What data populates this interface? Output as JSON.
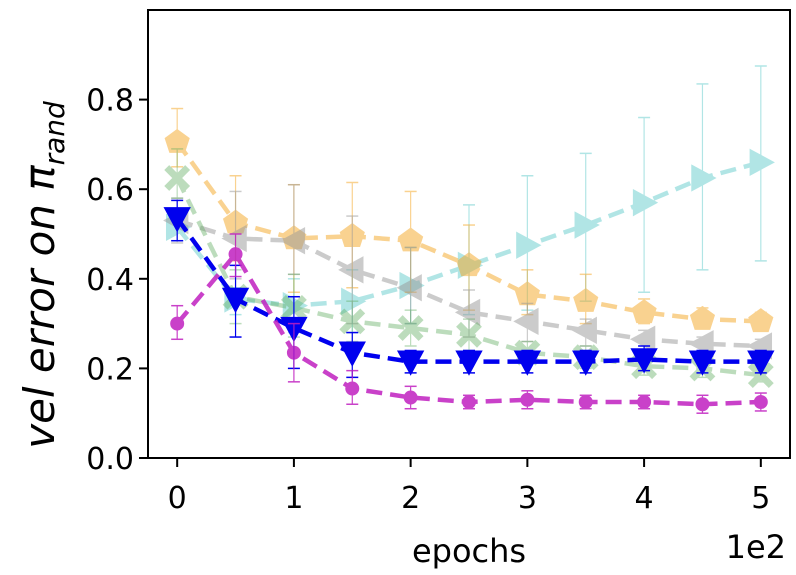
{
  "chart_data": {
    "type": "line",
    "xlabel": "epochs",
    "ylabel": "vel error on π",
    "ylabel_subscript": "rand",
    "x_offset_text": "1e2",
    "xlim": [
      -0.25,
      5.25
    ],
    "ylim": [
      0.0,
      1.0
    ],
    "x_ticks": [
      0,
      1,
      2,
      3,
      4,
      5
    ],
    "x_tick_labels": [
      "0",
      "1",
      "2",
      "3",
      "4",
      "5"
    ],
    "y_ticks": [
      0.0,
      0.2,
      0.4,
      0.6,
      0.8
    ],
    "y_tick_labels": [
      "0.0",
      "0.2",
      "0.4",
      "0.6",
      "0.8"
    ],
    "grid": false,
    "legend": "none",
    "x": [
      0,
      0.5,
      1,
      1.5,
      2,
      2.5,
      3,
      3.5,
      4,
      4.5,
      5
    ],
    "series": [
      {
        "color": "#66cdcd",
        "marker": "triangle-right",
        "opacity": 0.5,
        "values": [
          0.515,
          0.355,
          0.34,
          0.35,
          0.385,
          0.43,
          0.475,
          0.52,
          0.57,
          0.625,
          0.66
        ],
        "err_low": [
          0.485,
          0.32,
          0.28,
          0.28,
          0.3,
          0.32,
          0.33,
          0.35,
          0.37,
          0.42,
          0.44
        ],
        "err_high": [
          0.545,
          0.38,
          0.4,
          0.42,
          0.47,
          0.565,
          0.63,
          0.68,
          0.76,
          0.835,
          0.875
        ]
      },
      {
        "color": "#f5a623",
        "marker": "pentagon",
        "opacity": 0.5,
        "values": [
          0.705,
          0.525,
          0.49,
          0.495,
          0.485,
          0.43,
          0.365,
          0.35,
          0.325,
          0.31,
          0.305
        ],
        "err_low": [
          0.65,
          0.44,
          0.37,
          0.38,
          0.37,
          0.33,
          0.32,
          0.3,
          0.3,
          0.29,
          0.285
        ],
        "err_high": [
          0.78,
          0.63,
          0.61,
          0.615,
          0.595,
          0.52,
          0.42,
          0.41,
          0.355,
          0.335,
          0.325
        ]
      },
      {
        "color": "#999999",
        "marker": "triangle-left",
        "opacity": 0.5,
        "values": [
          0.53,
          0.49,
          0.485,
          0.42,
          0.38,
          0.325,
          0.305,
          0.285,
          0.265,
          0.255,
          0.25
        ],
        "err_low": [
          0.48,
          0.4,
          0.41,
          0.3,
          0.3,
          0.27,
          0.26,
          0.25,
          0.24,
          0.23,
          0.225
        ],
        "err_high": [
          0.58,
          0.595,
          0.61,
          0.54,
          0.47,
          0.375,
          0.345,
          0.31,
          0.285,
          0.27,
          0.265
        ]
      },
      {
        "color": "#5aaa5a",
        "marker": "x",
        "opacity": 0.4,
        "values": [
          0.625,
          0.36,
          0.335,
          0.305,
          0.29,
          0.275,
          0.235,
          0.225,
          0.205,
          0.2,
          0.185
        ],
        "err_low": [
          0.58,
          0.3,
          0.27,
          0.26,
          0.25,
          0.24,
          0.21,
          0.2,
          0.185,
          0.18,
          0.17
        ],
        "err_high": [
          0.69,
          0.42,
          0.41,
          0.35,
          0.33,
          0.31,
          0.26,
          0.25,
          0.225,
          0.215,
          0.2
        ]
      },
      {
        "color": "#0000ee",
        "marker": "triangle-down",
        "opacity": 1.0,
        "values": [
          0.535,
          0.355,
          0.29,
          0.235,
          0.215,
          0.215,
          0.215,
          0.215,
          0.22,
          0.215,
          0.215
        ],
        "err_low": [
          0.485,
          0.27,
          0.2,
          0.18,
          0.19,
          0.19,
          0.19,
          0.19,
          0.195,
          0.19,
          0.19
        ],
        "err_high": [
          0.575,
          0.43,
          0.36,
          0.28,
          0.24,
          0.24,
          0.24,
          0.24,
          0.25,
          0.24,
          0.24
        ]
      },
      {
        "color": "#c020c0",
        "marker": "circle",
        "opacity": 0.85,
        "values": [
          0.3,
          0.455,
          0.235,
          0.155,
          0.135,
          0.125,
          0.13,
          0.125,
          0.125,
          0.12,
          0.125
        ],
        "err_low": [
          0.265,
          0.405,
          0.17,
          0.12,
          0.11,
          0.11,
          0.11,
          0.11,
          0.11,
          0.1,
          0.105
        ],
        "err_high": [
          0.34,
          0.5,
          0.3,
          0.195,
          0.16,
          0.14,
          0.15,
          0.14,
          0.14,
          0.14,
          0.145
        ]
      }
    ]
  }
}
